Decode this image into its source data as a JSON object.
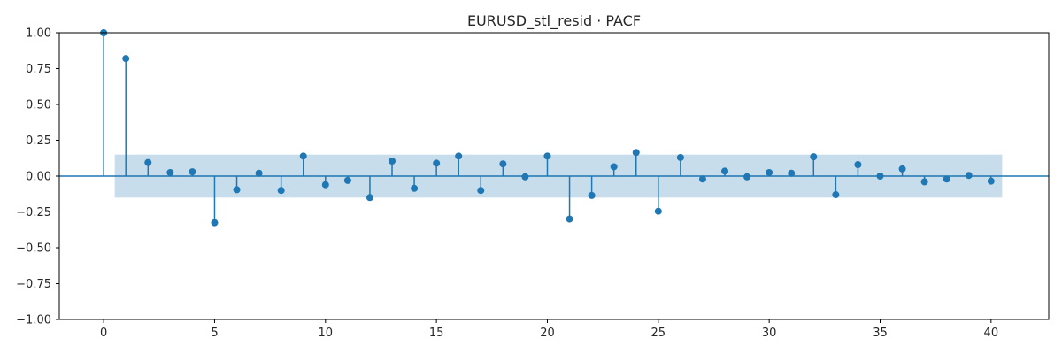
{
  "chart_data": {
    "type": "stem",
    "title": "EURUSD_stl_resid · PACF",
    "xlabel": "",
    "ylabel": "",
    "xlim": [
      -2,
      42.6
    ],
    "ylim": [
      -1.0,
      1.0
    ],
    "xticks": [
      0,
      5,
      10,
      15,
      20,
      25,
      30,
      35,
      40
    ],
    "xtick_labels": [
      "0",
      "5",
      "10",
      "15",
      "20",
      "25",
      "30",
      "35",
      "40"
    ],
    "yticks": [
      -1.0,
      -0.75,
      -0.5,
      -0.25,
      0.0,
      0.25,
      0.5,
      0.75,
      1.0
    ],
    "ytick_labels": [
      "−1.00",
      "−0.75",
      "−0.50",
      "−0.25",
      "0.00",
      "0.25",
      "0.50",
      "0.75",
      "1.00"
    ],
    "lags": [
      0,
      1,
      2,
      3,
      4,
      5,
      6,
      7,
      8,
      9,
      10,
      11,
      12,
      13,
      14,
      15,
      16,
      17,
      18,
      19,
      20,
      21,
      22,
      23,
      24,
      25,
      26,
      27,
      28,
      29,
      30,
      31,
      32,
      33,
      34,
      35,
      36,
      37,
      38,
      39,
      40
    ],
    "values": [
      1.0,
      0.82,
      0.095,
      0.025,
      0.03,
      -0.325,
      -0.095,
      0.02,
      -0.1,
      0.14,
      -0.06,
      -0.03,
      -0.15,
      0.105,
      -0.085,
      0.09,
      0.14,
      -0.1,
      0.085,
      -0.005,
      0.14,
      -0.3,
      -0.135,
      0.065,
      0.165,
      -0.245,
      0.13,
      -0.02,
      0.035,
      -0.005,
      0.025,
      0.02,
      0.135,
      -0.13,
      0.08,
      0.0,
      0.05,
      -0.04,
      -0.02,
      0.005,
      -0.035
    ],
    "confidence_band": {
      "lower": -0.15,
      "upper": 0.15,
      "x_start": 0.5,
      "x_end": 40.5
    },
    "grid": false,
    "colors": {
      "stem": "#1f77b4",
      "band": "#1f77b4",
      "axis": "#000000"
    }
  }
}
